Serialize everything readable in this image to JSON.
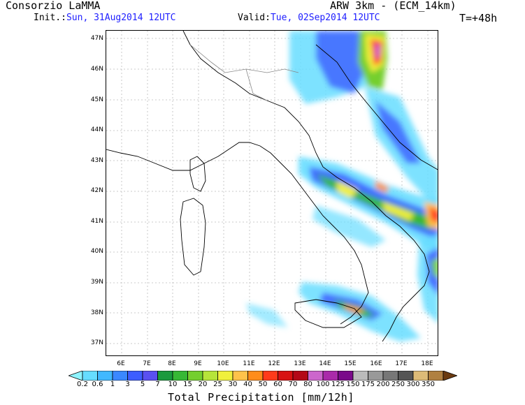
{
  "header": {
    "title": "Consorzio LaMMA",
    "model": "ARW 3km - (ECM_14km)",
    "init_label": "Init.:",
    "init_value": "Sun, 31Aug2014 12UTC",
    "valid_label": "Valid:",
    "valid_value": "Tue, 02Sep2014 12UTC",
    "lead_time": "T=+48h"
  },
  "map": {
    "lat_labels": [
      "47N",
      "46N",
      "45N",
      "44N",
      "43N",
      "42N",
      "41N",
      "40N",
      "39N",
      "38N",
      "37N"
    ],
    "lon_labels": [
      "6E",
      "7E",
      "8E",
      "9E",
      "10E",
      "11E",
      "12E",
      "13E",
      "14E",
      "15E",
      "16E",
      "17E",
      "18E"
    ]
  },
  "legend": {
    "title": "Total Precipitation [mm/12h]",
    "levels": [
      "0.2",
      "0.6",
      "1",
      "3",
      "5",
      "7",
      "10",
      "15",
      "20",
      "25",
      "30",
      "40",
      "50",
      "60",
      "70",
      "80",
      "100",
      "125",
      "150",
      "175",
      "200",
      "250",
      "300",
      "350"
    ],
    "colors": [
      "#8ef4ff",
      "#66ddff",
      "#40b8ff",
      "#3a88ff",
      "#3d5dff",
      "#5a50f0",
      "#1b9a3e",
      "#37b835",
      "#74cf2e",
      "#b6e43a",
      "#f0f03c",
      "#ffc24a",
      "#ff8c1a",
      "#ff3b1a",
      "#d81212",
      "#b40818",
      "#cc66cc",
      "#aa2aaa",
      "#7a0a8a",
      "#bbbbbb",
      "#999999",
      "#777777",
      "#555555",
      "#ddbb77",
      "#b08040",
      "#6b3a10"
    ]
  }
}
